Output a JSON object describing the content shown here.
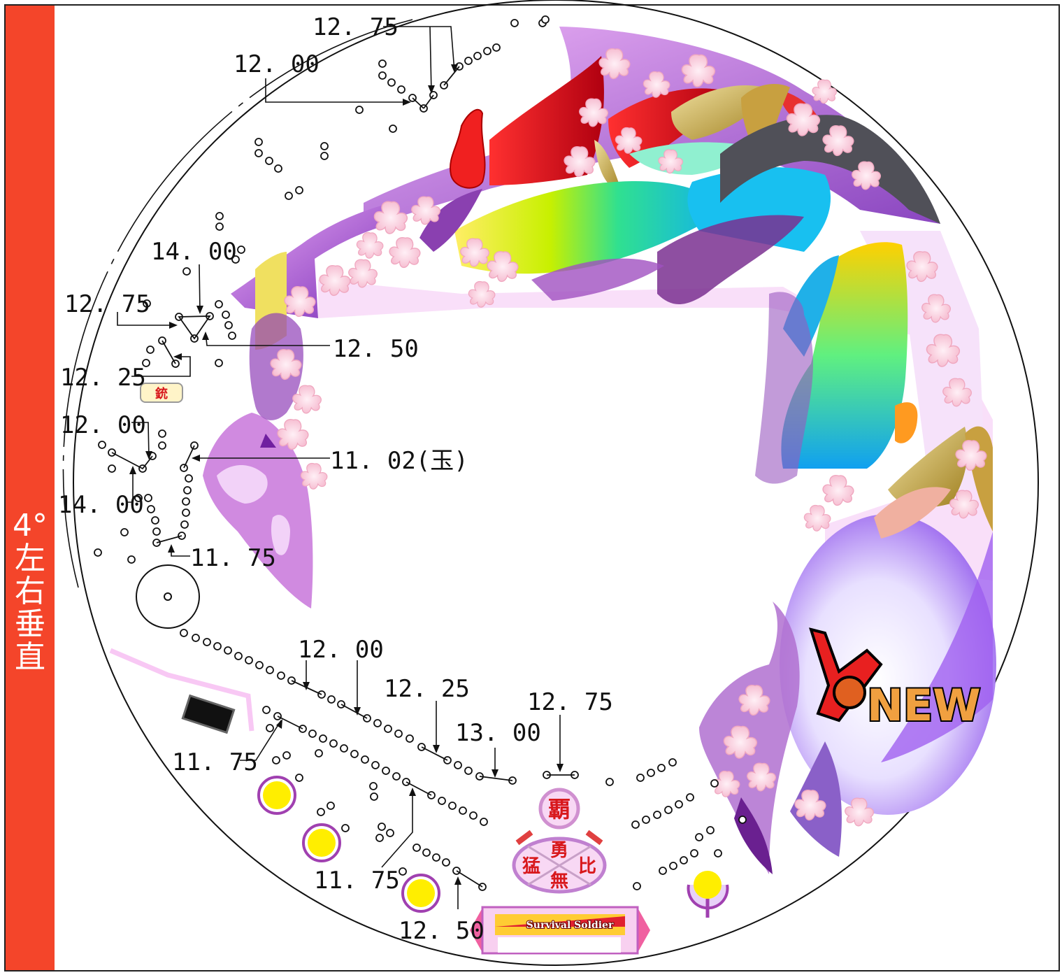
{
  "sidebar": {
    "label": "4°左右垂直"
  },
  "board": {
    "center_badge_text": "覇",
    "roulette_text": [
      "猛",
      "勇",
      "比",
      "無"
    ],
    "plate_text": "Survival Soldier",
    "small_tag_text": "銃",
    "logo_text": "NEW",
    "colors": {
      "sidebar": "#f4452a",
      "pocket_fill": "#ffee00",
      "pocket_ring": "#a040b0",
      "kanji": "#d8181c"
    }
  },
  "labels": {
    "top_1275": "12. 75",
    "top_1200": "12. 00",
    "l_1400_a": "14. 00",
    "l_1275": "12. 75",
    "l_1250": "12. 50",
    "l_1225": "12. 25",
    "l_1200": "12. 00",
    "l_1102": "11. 02(玉)",
    "l_1400_b": "14. 00",
    "l_1175_a": "11. 75",
    "b_1200": "12. 00",
    "b_1225": "12. 25",
    "b_1300": "13. 00",
    "b_1275": "12. 75",
    "b_1175_b": "11. 75",
    "b_1175_c": "11. 75",
    "b_1250": "12. 50"
  }
}
